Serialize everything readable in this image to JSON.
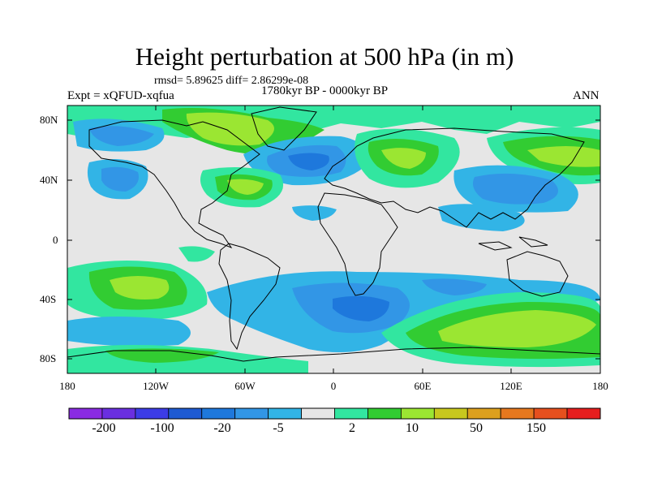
{
  "title": "Height perturbation at 500 hPa (in m)",
  "stats": "rmsd= 5.89625 diff= 2.86299e-08",
  "period": "1780kyr BP - 0000kyr BP",
  "experiment": "Expt = xQFUD-xqfua",
  "season": "ANN",
  "map": {
    "lat_labels": [
      "80N",
      "40N",
      "0",
      "40S",
      "80S"
    ],
    "lon_labels": [
      "180",
      "120W",
      "60W",
      "0",
      "60E",
      "120E",
      "180"
    ]
  },
  "colorbar": {
    "colors": [
      "#8a2be2",
      "#6a2fe0",
      "#3c3ce6",
      "#1e5ad2",
      "#1e78dc",
      "#3296e6",
      "#32b4e6",
      "#e6e6e6",
      "#32e6a0",
      "#32cc32",
      "#9be632",
      "#c8c81e",
      "#dca01e",
      "#e6781e",
      "#e6501e",
      "#e61e1e"
    ],
    "labels": [
      "-200",
      "-100",
      "-20",
      "-5",
      "2",
      "10",
      "50",
      "150"
    ]
  }
}
